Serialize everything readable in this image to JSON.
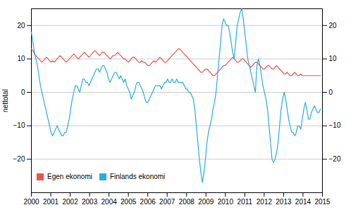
{
  "chart_data": {
    "type": "line",
    "ylabel": "nettotal",
    "x": [
      2000,
      2000.078,
      2000.156,
      2000.234,
      2000.312,
      2000.3901,
      2000.4681,
      2000.5461,
      2000.6241,
      2000.7021,
      2000.7801,
      2000.8581,
      2000.9361,
      2001.0141,
      2001.0921,
      2001.1702,
      2001.2482,
      2001.3262,
      2001.4042,
      2001.4822,
      2001.5602,
      2001.6382,
      2001.7162,
      2001.7942,
      2001.8723,
      2001.9503,
      2002.0283,
      2002.1063,
      2002.1843,
      2002.2623,
      2002.3403,
      2002.4183,
      2002.4963,
      2002.5743,
      2002.6524,
      2002.7304,
      2002.8084,
      2002.8864,
      2002.9644,
      2003.0424,
      2003.1204,
      2003.1984,
      2003.2764,
      2003.3545,
      2003.4325,
      2003.5105,
      2003.5885,
      2003.6665,
      2003.7445,
      2003.8225,
      2003.9005,
      2003.9785,
      2004.0565,
      2004.1346,
      2004.2126,
      2004.2906,
      2004.3686,
      2004.4466,
      2004.5246,
      2004.6026,
      2004.6806,
      2004.7586,
      2004.8366,
      2004.9147,
      2004.9927,
      2005.0707,
      2005.1487,
      2005.2267,
      2005.3047,
      2005.3827,
      2005.4607,
      2005.5387,
      2005.6168,
      2005.6948,
      2005.7728,
      2005.8508,
      2005.9288,
      2006.0068,
      2006.0848,
      2006.1628,
      2006.2408,
      2006.3188,
      2006.3969,
      2006.4749,
      2006.5529,
      2006.6309,
      2006.7089,
      2006.7869,
      2006.8649,
      2006.9429,
      2007.0209,
      2007.099,
      2007.177,
      2007.255,
      2007.333,
      2007.411,
      2007.489,
      2007.567,
      2007.645,
      2007.723,
      2007.801,
      2007.8791,
      2007.9571,
      2008.0351,
      2008.1131,
      2008.1911,
      2008.2691,
      2008.3471,
      2008.4251,
      2008.5031,
      2008.5812,
      2008.6592,
      2008.7372,
      2008.8152,
      2008.8932,
      2008.9712,
      2009.0492,
      2009.1272,
      2009.2052,
      2009.2832,
      2009.3613,
      2009.4393,
      2009.5173,
      2009.5953,
      2009.6733,
      2009.7513,
      2009.8293,
      2009.9073,
      2009.9853,
      2010.0634,
      2010.1414,
      2010.2194,
      2010.2974,
      2010.3754,
      2010.4534,
      2010.5314,
      2010.6094,
      2010.6874,
      2010.7654,
      2010.8435,
      2010.9215,
      2010.9995,
      2011.0775,
      2011.1555,
      2011.2335,
      2011.3115,
      2011.3895,
      2011.4675,
      2011.5455,
      2011.6236,
      2011.7016,
      2011.7796,
      2011.8576,
      2011.9356,
      2012.0136,
      2012.0916,
      2012.1696,
      2012.2476,
      2012.3257,
      2012.4037,
      2012.4817,
      2012.5597,
      2012.6377,
      2012.7157,
      2012.7937,
      2012.8717,
      2012.9497,
      2013.0277,
      2013.1058,
      2013.1838,
      2013.2618,
      2013.3398,
      2013.4178,
      2013.4958,
      2013.5738,
      2013.6518,
      2013.7298,
      2013.8079,
      2013.8859,
      2013.9639,
      2014.0419,
      2014.1199,
      2014.1979,
      2014.2759,
      2014.3539,
      2014.4319,
      2014.5099,
      2014.588,
      2014.666,
      2014.744,
      2014.822,
      2014.9
    ],
    "series": [
      {
        "name": "Egen ekonomi",
        "color": "#e8534a",
        "values": [
          13.0,
          12.5,
          11.5,
          11.0,
          10.5,
          10.0,
          9.5,
          9.0,
          9.5,
          10.0,
          10.5,
          10.0,
          9.5,
          9.0,
          9.5,
          9.0,
          9.5,
          10.0,
          10.5,
          11.0,
          10.5,
          10.0,
          9.5,
          9.0,
          9.5,
          10.0,
          10.5,
          11.0,
          11.5,
          11.0,
          10.5,
          10.0,
          10.5,
          11.0,
          11.5,
          12.0,
          11.5,
          11.0,
          10.5,
          11.0,
          11.5,
          12.0,
          12.5,
          12.0,
          11.5,
          11.0,
          11.5,
          12.0,
          12.0,
          11.5,
          11.0,
          10.5,
          10.0,
          10.5,
          11.0,
          11.0,
          11.5,
          12.0,
          11.5,
          11.0,
          10.5,
          10.0,
          10.0,
          9.5,
          9.0,
          9.5,
          10.0,
          10.5,
          10.5,
          10.0,
          9.5,
          9.0,
          9.0,
          9.5,
          9.0,
          9.0,
          8.5,
          8.0,
          8.0,
          8.5,
          9.0,
          9.5,
          9.0,
          9.5,
          10.0,
          10.5,
          10.0,
          9.5,
          9.0,
          9.0,
          9.5,
          10.0,
          10.5,
          11.0,
          11.5,
          12.0,
          12.5,
          13.0,
          13.0,
          12.5,
          12.0,
          11.5,
          11.0,
          10.5,
          10.0,
          9.5,
          9.0,
          8.5,
          8.0,
          7.5,
          7.0,
          6.5,
          6.0,
          6.0,
          6.5,
          7.0,
          7.0,
          6.5,
          6.0,
          5.5,
          5.0,
          5.0,
          5.5,
          6.0,
          6.5,
          7.0,
          7.5,
          8.0,
          8.0,
          8.5,
          9.0,
          9.5,
          10.0,
          10.5,
          10.0,
          9.5,
          9.0,
          9.0,
          9.5,
          10.0,
          10.0,
          9.5,
          9.0,
          8.5,
          8.0,
          7.5,
          8.0,
          8.5,
          9.0,
          9.0,
          8.5,
          8.0,
          7.5,
          7.0,
          7.0,
          7.5,
          8.0,
          8.0,
          7.5,
          7.0,
          7.0,
          7.5,
          8.0,
          7.5,
          7.0,
          6.5,
          6.0,
          5.5,
          5.5,
          6.0,
          5.5,
          5.0,
          5.0,
          5.5,
          6.0,
          5.5,
          5.0,
          5.0,
          5.5,
          5.0,
          5.0,
          5.0,
          5.0,
          5.0,
          5.0,
          5.0,
          5.0,
          5.0,
          5.0,
          5.0,
          5.0,
          5.0
        ]
      },
      {
        "name": "Finlands ekonomi",
        "color": "#29aae2",
        "values": [
          18.0,
          15.0,
          12.0,
          10.0,
          8.0,
          5.0,
          2.0,
          0.0,
          -2.0,
          -4.0,
          -6.0,
          -8.0,
          -10.0,
          -12.0,
          -13.0,
          -12.0,
          -11.0,
          -10.0,
          -11.0,
          -12.0,
          -13.0,
          -13.0,
          -12.0,
          -12.0,
          -10.0,
          -8.0,
          -5.0,
          -2.0,
          0.0,
          2.0,
          2.0,
          1.0,
          0.0,
          2.0,
          4.0,
          4.0,
          3.0,
          3.0,
          2.0,
          3.0,
          4.0,
          5.0,
          6.0,
          7.0,
          7.0,
          6.0,
          7.0,
          8.0,
          8.0,
          7.0,
          6.0,
          4.0,
          3.0,
          4.0,
          5.0,
          6.0,
          6.0,
          5.0,
          4.0,
          5.0,
          4.0,
          3.0,
          4.0,
          2.0,
          1.0,
          0.0,
          -2.0,
          -1.0,
          0.0,
          2.0,
          3.0,
          3.0,
          2.0,
          1.0,
          0.0,
          -2.0,
          -3.0,
          -3.0,
          -2.0,
          -1.0,
          0.0,
          1.0,
          2.0,
          2.0,
          2.0,
          2.0,
          1.0,
          2.0,
          3.0,
          3.0,
          4.0,
          3.0,
          3.0,
          4.0,
          3.0,
          3.0,
          4.0,
          3.0,
          3.0,
          3.0,
          3.0,
          2.0,
          1.0,
          1.0,
          0.0,
          0.0,
          -1.0,
          -2.0,
          -5.0,
          -10.0,
          -15.0,
          -20.0,
          -24.0,
          -27.0,
          -24.0,
          -20.0,
          -15.0,
          -12.0,
          -10.0,
          -8.0,
          -5.0,
          -3.0,
          0.0,
          5.0,
          10.0,
          15.0,
          20.0,
          22.0,
          21.0,
          20.0,
          20.0,
          18.0,
          15.0,
          12.0,
          10.0,
          15.0,
          20.0,
          22.0,
          24.0,
          25.0,
          22.0,
          18.0,
          14.0,
          10.0,
          8.0,
          6.0,
          4.0,
          2.0,
          0.0,
          8.0,
          10.0,
          8.0,
          5.0,
          2.0,
          0.0,
          -2.0,
          -5.0,
          -10.0,
          -15.0,
          -20.0,
          -21.0,
          -20.0,
          -18.0,
          -15.0,
          -10.0,
          -5.0,
          -2.0,
          0.0,
          -2.0,
          -5.0,
          -8.0,
          -10.0,
          -12.0,
          -12.0,
          -13.0,
          -12.0,
          -10.0,
          -10.0,
          -11.0,
          -8.0,
          -5.0,
          -3.0,
          -5.0,
          -8.0,
          -8.0,
          -6.0,
          -5.0,
          -4.0,
          -5.0,
          -6.0,
          -6.0,
          -5.0
        ]
      }
    ],
    "xlim": [
      2000,
      2015
    ],
    "xticks": [
      2000,
      2001,
      2002,
      2003,
      2004,
      2005,
      2006,
      2007,
      2008,
      2009,
      2010,
      2011,
      2012,
      2013,
      2014,
      2015
    ],
    "ylim": [
      -30,
      25
    ],
    "yticks": [
      -20,
      -10,
      0,
      10,
      20
    ],
    "grid": true,
    "legend": "lower left"
  }
}
